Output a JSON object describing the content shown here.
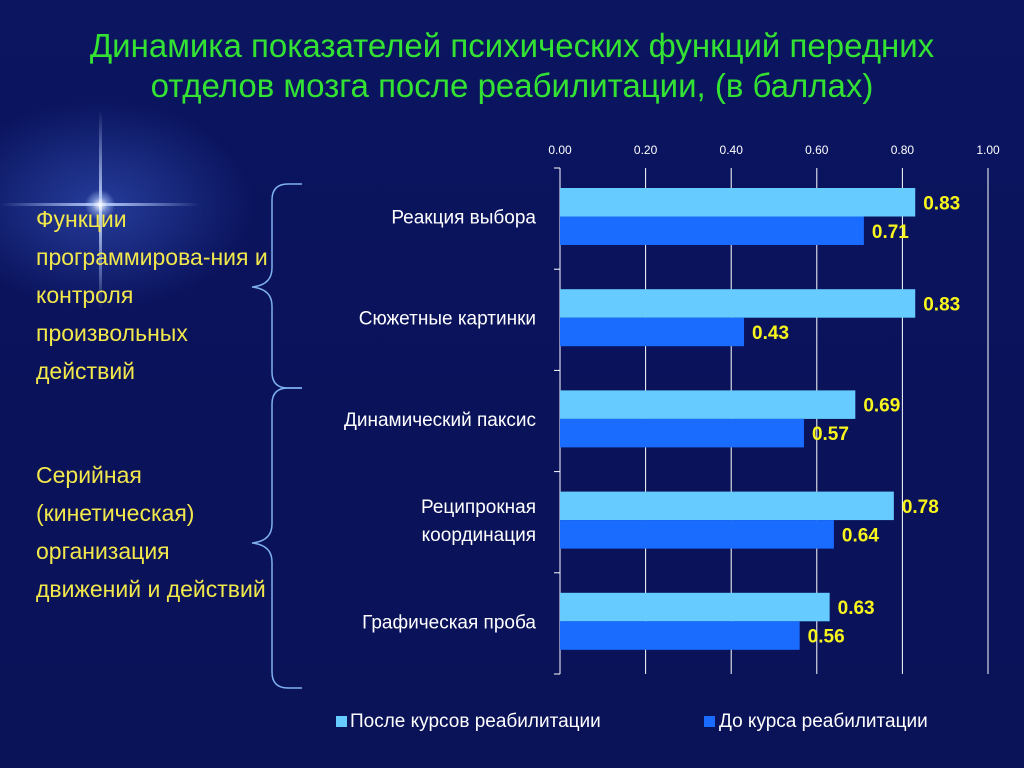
{
  "title": "Динамика показателей психических функций передних отделов мозга после реабилитации, (в баллах)",
  "groups": [
    {
      "label": "Функции программирова-ния и контроля произвольных действий"
    },
    {
      "label": "Серийная (кинетическая) организация движений и действий"
    }
  ],
  "chart_data": {
    "type": "bar",
    "orientation": "horizontal",
    "categories": [
      "Реакция выбора",
      "Сюжетные картинки",
      "Динамический паксис",
      "Реципрокная координация",
      "Графическая проба"
    ],
    "series": [
      {
        "name": "После курсов реабилитации",
        "values": [
          0.83,
          0.83,
          0.69,
          0.78,
          0.63
        ],
        "color": "#66ccff"
      },
      {
        "name": "До курса реабилитации",
        "values": [
          0.71,
          0.43,
          0.57,
          0.64,
          0.56
        ],
        "color": "#1a6cff"
      }
    ],
    "xlim": [
      0,
      1
    ],
    "xticks": [
      0,
      0.2,
      0.4,
      0.6,
      0.8,
      1.0
    ],
    "tick_labels": [
      "0.00",
      "0.20",
      "0.40",
      "0.60",
      "0.80",
      "1.00"
    ],
    "data_label_format": "0.00",
    "data_label_color": "#f7f51c",
    "grid": true,
    "axis_position": "top",
    "legend_position": "bottom"
  }
}
